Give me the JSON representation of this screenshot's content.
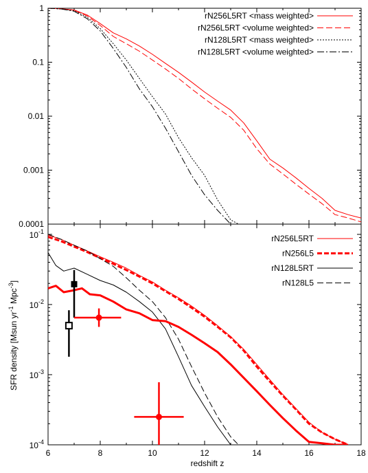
{
  "chart_data": [
    {
      "type": "line",
      "panel": "top",
      "title": "",
      "xlabel": "",
      "ylabel": "",
      "xlim": [
        6,
        18
      ],
      "ylim": [
        0.0001,
        1
      ],
      "yscale": "log",
      "y_tick_labels": [
        "1",
        "0.1",
        "0.01",
        "0.001",
        "0.0001"
      ],
      "x_tick_labels": [],
      "legend_position": "top-right",
      "series": [
        {
          "name": "rN256L5RT <mass weighted>",
          "color": "#ff0000",
          "linestyle": "solid",
          "x": [
            6.0,
            6.5,
            7.0,
            7.5,
            8.0,
            8.5,
            9.0,
            9.5,
            10.0,
            10.5,
            11.0,
            11.5,
            12.0,
            12.5,
            13.0,
            13.5,
            14.0,
            14.5,
            15.0,
            15.5,
            16.0,
            16.5,
            17.0,
            17.5,
            18.0
          ],
          "y": [
            1.0,
            0.98,
            0.93,
            0.75,
            0.52,
            0.35,
            0.27,
            0.2,
            0.14,
            0.095,
            0.065,
            0.043,
            0.028,
            0.019,
            0.013,
            0.0075,
            0.0035,
            0.0016,
            0.0011,
            0.00072,
            0.00046,
            0.0003,
            0.00018,
            0.00015,
            0.00013
          ]
        },
        {
          "name": "rN256L5RT <volume weighted>",
          "color": "#ff0000",
          "linestyle": "dashed",
          "x": [
            6.0,
            6.5,
            7.0,
            7.5,
            8.0,
            8.5,
            9.0,
            9.5,
            10.0,
            10.5,
            11.0,
            11.5,
            12.0,
            12.5,
            13.0,
            13.5,
            14.0,
            14.5,
            15.0,
            15.5,
            16.0,
            16.5,
            17.0,
            17.5,
            18.0
          ],
          "y": [
            1.0,
            0.98,
            0.92,
            0.72,
            0.48,
            0.3,
            0.22,
            0.16,
            0.11,
            0.075,
            0.05,
            0.032,
            0.021,
            0.014,
            0.0095,
            0.0055,
            0.0025,
            0.0013,
            0.00085,
            0.00055,
            0.00036,
            0.00024,
            0.00015,
            0.00013,
            0.00011
          ]
        },
        {
          "name": "rN128L5RT <mass weighted>",
          "color": "#000000",
          "linestyle": "dotted",
          "x": [
            6.0,
            6.5,
            7.0,
            7.5,
            8.0,
            8.5,
            9.0,
            9.5,
            10.0,
            10.5,
            11.0,
            11.5,
            12.0,
            12.5,
            13.0,
            13.3
          ],
          "y": [
            1.0,
            0.97,
            0.9,
            0.68,
            0.42,
            0.22,
            0.11,
            0.05,
            0.023,
            0.011,
            0.004,
            0.0017,
            0.0008,
            0.00028,
            0.00012,
            0.0001
          ]
        },
        {
          "name": "rN128L5RT <volume weighted>",
          "color": "#000000",
          "linestyle": "dashdot",
          "x": [
            6.0,
            6.5,
            7.0,
            7.5,
            8.0,
            8.5,
            9.0,
            9.5,
            10.0,
            10.5,
            11.0,
            11.5,
            12.0,
            12.5,
            13.0
          ],
          "y": [
            1.0,
            0.97,
            0.88,
            0.64,
            0.38,
            0.18,
            0.08,
            0.032,
            0.015,
            0.006,
            0.0022,
            0.0008,
            0.00035,
            0.00018,
            0.0001
          ]
        }
      ]
    },
    {
      "type": "line",
      "panel": "bottom",
      "title": "",
      "xlabel": "redshift z",
      "ylabel": "SFR density [Msun yr^-1 Mpc^-3]",
      "ylabel_parts": [
        "SFR density [Msun yr",
        "-1",
        " Mpc",
        "-3",
        "]"
      ],
      "xlim": [
        6,
        18
      ],
      "ylim": [
        0.0001,
        0.14
      ],
      "yscale": "log",
      "x_tick_labels": [
        "6",
        "8",
        "10",
        "12",
        "14",
        "16",
        "18"
      ],
      "y_tick_labels": [
        {
          "base": "10",
          "exp": "-1"
        },
        {
          "base": "10",
          "exp": "-2"
        },
        {
          "base": "10",
          "exp": "-3"
        },
        {
          "base": "10",
          "exp": "-4"
        }
      ],
      "legend_position": "top-right",
      "series": [
        {
          "name": "rN256L5RT",
          "color": "#ff0000",
          "linestyle": "solid",
          "width": "thin",
          "x": [
            6.0,
            6.5,
            7.0,
            7.5,
            8.0,
            8.5,
            9.0,
            9.5,
            10.0,
            10.5,
            11.0,
            11.5,
            12.0,
            12.5,
            13.0,
            13.5,
            14.0,
            14.5,
            15.0,
            15.5,
            16.0,
            16.5,
            17.0,
            17.5
          ],
          "y": [
            0.098,
            0.085,
            0.07,
            0.058,
            0.048,
            0.04,
            0.033,
            0.026,
            0.021,
            0.016,
            0.0125,
            0.0095,
            0.007,
            0.005,
            0.0035,
            0.0023,
            0.0014,
            0.00085,
            0.00052,
            0.00033,
            0.00021,
            0.00015,
            0.00012,
            0.0001
          ]
        },
        {
          "name": "rN256L5",
          "color": "#ff0000",
          "linestyle": "dashed",
          "width": "thick",
          "x": [
            6.0,
            6.5,
            7.0,
            7.5,
            8.0,
            8.5,
            9.0,
            9.5,
            10.0,
            10.5,
            11.0,
            11.5,
            12.0,
            12.5,
            13.0,
            13.5,
            14.0,
            14.5,
            15.0,
            15.5,
            16.0,
            16.5,
            17.0,
            17.5
          ],
          "y": [
            0.092,
            0.08,
            0.067,
            0.056,
            0.046,
            0.038,
            0.031,
            0.025,
            0.02,
            0.0155,
            0.012,
            0.009,
            0.0067,
            0.0048,
            0.0034,
            0.0022,
            0.0013,
            0.0008,
            0.0005,
            0.00032,
            0.0002,
            0.00015,
            0.00012,
            0.0001
          ]
        },
        {
          "name": "rN128L5RT",
          "color": "#000000",
          "linestyle": "solid",
          "width": "thin",
          "x": [
            6.0,
            6.3,
            6.6,
            7.0,
            7.5,
            8.0,
            8.5,
            9.0,
            9.5,
            10.0,
            10.5,
            11.0,
            11.5,
            12.0,
            12.5,
            13.0
          ],
          "y": [
            0.055,
            0.036,
            0.03,
            0.033,
            0.027,
            0.022,
            0.019,
            0.015,
            0.011,
            0.0078,
            0.0045,
            0.0018,
            0.0007,
            0.00035,
            0.00018,
            0.0001
          ]
        },
        {
          "name": "rN128L5",
          "color": "#000000",
          "linestyle": "dashed",
          "width": "thin",
          "x": [
            6.0,
            6.5,
            7.0,
            7.5,
            8.0,
            8.5,
            9.0,
            9.5,
            10.0,
            10.5,
            11.0,
            11.5,
            12.0,
            12.5,
            13.0,
            13.3
          ],
          "y": [
            0.1,
            0.085,
            0.07,
            0.058,
            0.045,
            0.035,
            0.024,
            0.016,
            0.011,
            0.0065,
            0.0032,
            0.0013,
            0.00055,
            0.00025,
            0.00013,
            0.0001
          ]
        },
        {
          "name": "rN256L5 (thick solid)",
          "color": "#ff0000",
          "linestyle": "solid",
          "width": "thick",
          "x": [
            6.0,
            6.3,
            6.6,
            7.0,
            7.3,
            7.6,
            8.0,
            8.5,
            9.0,
            9.5,
            10.0,
            10.5,
            11.0,
            11.5,
            12.0,
            12.5,
            13.0,
            13.5,
            14.0,
            14.5,
            15.0,
            15.5,
            16.0,
            16.5,
            17.0,
            17.5
          ],
          "y": [
            0.017,
            0.0185,
            0.015,
            0.016,
            0.017,
            0.014,
            0.0135,
            0.011,
            0.0085,
            0.0075,
            0.006,
            0.0058,
            0.0048,
            0.0037,
            0.0028,
            0.0021,
            0.0014,
            0.0009,
            0.00058,
            0.00037,
            0.00024,
            0.00016,
            0.00011,
            0.000105,
            0.0001,
            0.0001
          ]
        }
      ],
      "observations": [
        {
          "x": 7.0,
          "y": 0.0195,
          "yerr_low": 0.0065,
          "yerr_high": 0.031,
          "xerr": 0,
          "marker": "filled-square",
          "color": "#000000"
        },
        {
          "x": 6.8,
          "y": 0.005,
          "yerr_low": 0.0018,
          "yerr_high": 0.0083,
          "xerr": 0,
          "marker": "open-square",
          "color": "#000000"
        },
        {
          "x": 7.95,
          "y": 0.0065,
          "yerr_low": 0.0048,
          "yerr_high": 0.0088,
          "x_low": 7.0,
          "x_high": 8.8,
          "marker": "filled-circle",
          "color": "#ff0000"
        },
        {
          "x": 10.25,
          "y": 0.00025,
          "yerr_low": 9e-05,
          "yerr_high": 0.00078,
          "x_low": 9.3,
          "x_high": 11.2,
          "marker": "filled-circle",
          "color": "#ff0000"
        }
      ]
    }
  ]
}
